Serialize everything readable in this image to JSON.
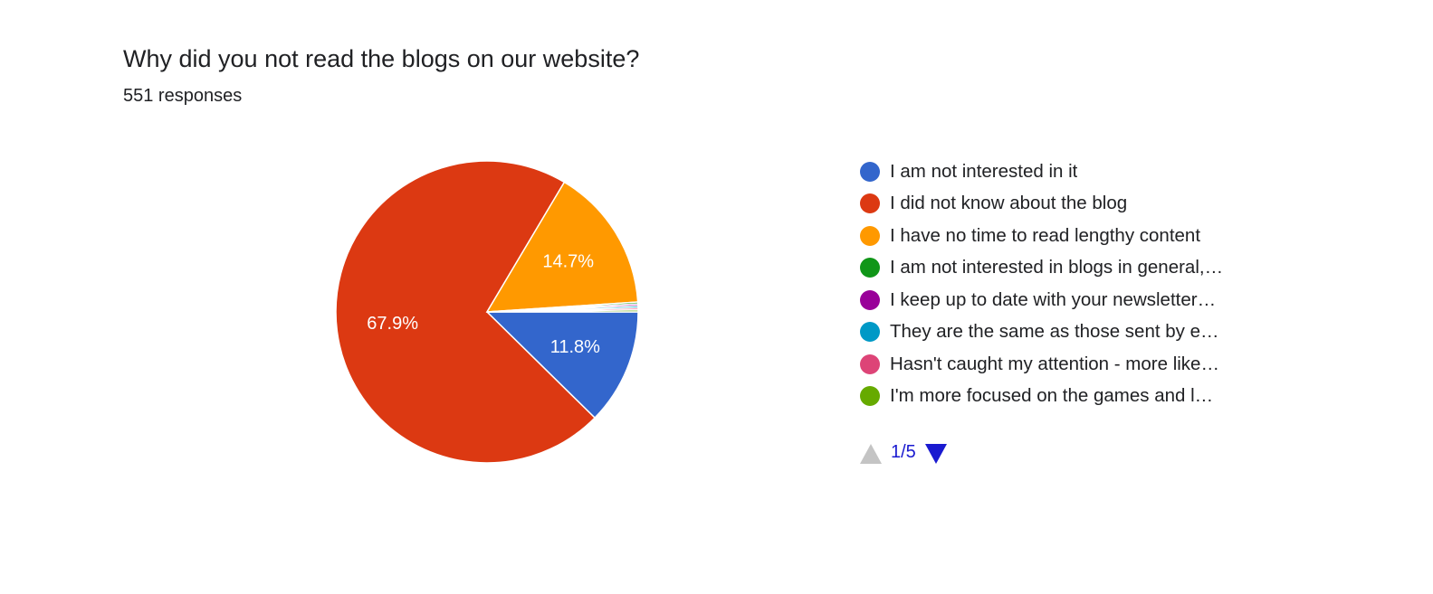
{
  "header": {
    "title": "Why did you not read the blogs on our website?",
    "responses": "551 responses"
  },
  "chart_data": {
    "type": "pie",
    "title": "Why did you not read the blogs on our website?",
    "subtitle": "551 responses",
    "series": [
      {
        "label": "I am not interested in it",
        "value": 11.8,
        "display": "11.8%",
        "color": "#3366cc"
      },
      {
        "label": "I did not know about the blog",
        "value": 67.9,
        "display": "67.9%",
        "color": "#dc3912"
      },
      {
        "label": "I have no time to read lengthy content",
        "value": 14.7,
        "display": "14.7%",
        "color": "#ff9900"
      },
      {
        "label": "I am not interested in blogs in general,…",
        "value": 0.2,
        "display": "",
        "color": "#109618"
      },
      {
        "label": "I keep up to date with your newsletter…",
        "value": 0.2,
        "display": "",
        "color": "#990099"
      },
      {
        "label": "They are the same as those sent by e…",
        "value": 0.2,
        "display": "",
        "color": "#0099c6"
      },
      {
        "label": "Hasn't caught my attention - more like…",
        "value": 0.2,
        "display": "",
        "color": "#dd4477"
      },
      {
        "label": "I'm more focused on the games and l…",
        "value": 0.2,
        "display": "",
        "color": "#66aa00"
      }
    ],
    "legend_position": "right"
  },
  "pager": {
    "text": "1/5"
  }
}
